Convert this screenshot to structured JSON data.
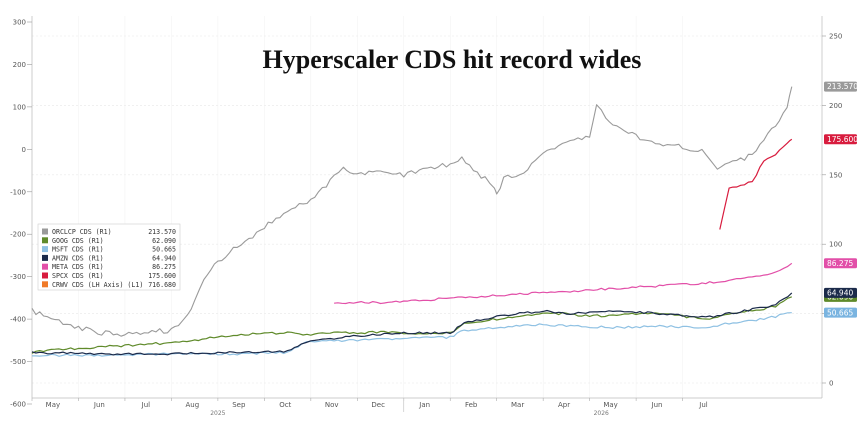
{
  "chart_data": {
    "type": "line",
    "title": "Hyperscaler CDS hit record wides",
    "grid": true,
    "legend_position": "left",
    "x_months": [
      "May",
      "Jun",
      "Jul",
      "Aug",
      "Sep",
      "Oct",
      "Nov",
      "Dec",
      "Jan",
      "Feb",
      "Mar",
      "Apr",
      "May",
      "Jun",
      "Jul"
    ],
    "x_years": [
      "2025",
      "2026"
    ],
    "y_left": {
      "ticks": [
        "300",
        "200",
        "100",
        "0",
        "-100",
        "-200",
        "-300",
        "-400",
        "-500",
        "-600"
      ],
      "ylim": [
        -600,
        300
      ]
    },
    "y_right": {
      "ticks": [
        "250",
        "200",
        "150",
        "100",
        "50",
        "0"
      ],
      "ylim": [
        0,
        250
      ]
    },
    "series": [
      {
        "name": "ORCLCP CDS (R1)",
        "last": "213.570",
        "color": "#9a9a9a",
        "tag_fill": "#9a9a9a",
        "tag_text": "#ffffff",
        "points": [
          [
            0,
            52
          ],
          [
            1,
            45
          ],
          [
            2,
            40
          ],
          [
            3,
            36
          ],
          [
            4,
            35
          ],
          [
            5,
            37
          ],
          [
            6,
            38
          ],
          [
            6.3,
            42
          ],
          [
            6.7,
            48
          ],
          [
            7,
            60
          ],
          [
            7.4,
            75
          ],
          [
            8,
            88
          ],
          [
            9,
            100
          ],
          [
            10,
            112
          ],
          [
            11,
            125
          ],
          [
            12,
            132
          ],
          [
            13,
            148
          ],
          [
            13.4,
            155
          ],
          [
            14,
            150
          ],
          [
            15,
            153
          ],
          [
            16,
            150
          ],
          [
            17,
            154
          ],
          [
            18,
            158
          ],
          [
            18.5,
            162
          ],
          [
            19,
            152
          ],
          [
            19.5,
            148
          ],
          [
            19.9,
            140
          ],
          [
            20,
            136
          ],
          [
            20.3,
            148
          ],
          [
            21,
            150
          ],
          [
            21.5,
            158
          ],
          [
            22,
            164
          ],
          [
            22.5,
            170
          ],
          [
            23,
            172
          ],
          [
            24,
            178
          ],
          [
            24.3,
            200
          ],
          [
            24.7,
            192
          ],
          [
            25,
            185
          ],
          [
            26,
            178
          ],
          [
            27,
            172
          ],
          [
            28,
            170
          ],
          [
            29,
            166
          ],
          [
            29.5,
            154
          ],
          [
            30,
            158
          ],
          [
            31,
            164
          ],
          [
            31.5,
            175
          ],
          [
            32,
            185
          ],
          [
            32.5,
            200
          ],
          [
            32.7,
            213.57
          ]
        ]
      },
      {
        "name": "GOOG CDS (R1)",
        "last": "62.090",
        "color": "#5f8a2a",
        "tag_fill": "#5f8a2a",
        "tag_text": "#ffffff",
        "points": [
          [
            0,
            22
          ],
          [
            1,
            24
          ],
          [
            2,
            25
          ],
          [
            3,
            26
          ],
          [
            4,
            27
          ],
          [
            5,
            28
          ],
          [
            6,
            29
          ],
          [
            7,
            31
          ],
          [
            8,
            33
          ],
          [
            9,
            35
          ],
          [
            10,
            36
          ],
          [
            11,
            36
          ],
          [
            12,
            35
          ],
          [
            13,
            36
          ],
          [
            14,
            36
          ],
          [
            15,
            37
          ],
          [
            16,
            36
          ],
          [
            17,
            35
          ],
          [
            18,
            36
          ],
          [
            18.6,
            43
          ],
          [
            19,
            44
          ],
          [
            20,
            46
          ],
          [
            21,
            48
          ],
          [
            22,
            50
          ],
          [
            23,
            50
          ],
          [
            24,
            48
          ],
          [
            25,
            49
          ],
          [
            26,
            50
          ],
          [
            27,
            50
          ],
          [
            28,
            48
          ],
          [
            29,
            46
          ],
          [
            30,
            50
          ],
          [
            31,
            52
          ],
          [
            32,
            55
          ],
          [
            32.7,
            62.09
          ]
        ]
      },
      {
        "name": "MSFT CDS (R1)",
        "last": "50.665",
        "color": "#8fc1e3",
        "tag_fill": "#7ab4e0",
        "tag_text": "#ffffff",
        "points": [
          [
            0,
            20
          ],
          [
            3,
            20
          ],
          [
            6,
            21
          ],
          [
            9,
            21
          ],
          [
            11,
            22
          ],
          [
            11.6,
            28
          ],
          [
            12,
            30
          ],
          [
            14,
            31
          ],
          [
            16,
            32
          ],
          [
            18,
            33
          ],
          [
            18.6,
            38
          ],
          [
            20,
            40
          ],
          [
            22,
            42
          ],
          [
            23,
            41
          ],
          [
            25,
            40
          ],
          [
            27,
            41
          ],
          [
            29,
            40
          ],
          [
            30,
            43
          ],
          [
            31,
            45
          ],
          [
            32,
            48
          ],
          [
            32.7,
            50.665
          ]
        ]
      },
      {
        "name": "AMZN CDS (R1)",
        "last": "64.940",
        "color": "#1b2a4a",
        "tag_fill": "#1b2a4a",
        "tag_text": "#ffffff",
        "points": [
          [
            0,
            22
          ],
          [
            3,
            21
          ],
          [
            6,
            21
          ],
          [
            9,
            22
          ],
          [
            11,
            23
          ],
          [
            11.6,
            28
          ],
          [
            12,
            30
          ],
          [
            14,
            34
          ],
          [
            16,
            36
          ],
          [
            18,
            36
          ],
          [
            18.6,
            43
          ],
          [
            20,
            48
          ],
          [
            22,
            52
          ],
          [
            23,
            50
          ],
          [
            25,
            52
          ],
          [
            27,
            50
          ],
          [
            29,
            47
          ],
          [
            30,
            50
          ],
          [
            31,
            53
          ],
          [
            32,
            56
          ],
          [
            32.7,
            64.94
          ]
        ]
      },
      {
        "name": "META CDS (R1)",
        "last": "86.275",
        "color": "#e24fa8",
        "tag_fill": "#e24fa8",
        "tag_text": "#ffffff",
        "points": [
          [
            13,
            58
          ],
          [
            15,
            58
          ],
          [
            17,
            60
          ],
          [
            19,
            62
          ],
          [
            21,
            64
          ],
          [
            23,
            66
          ],
          [
            25,
            68
          ],
          [
            27,
            70
          ],
          [
            29,
            72
          ],
          [
            30,
            74
          ],
          [
            31,
            76
          ],
          [
            32,
            80
          ],
          [
            32.7,
            86.275
          ]
        ]
      },
      {
        "name": "SPCX CDS (R1)",
        "last": "175.600",
        "color": "#d81c3e",
        "tag_fill": "#d81c3e",
        "tag_text": "#ffffff",
        "points": [
          [
            29.6,
            110
          ],
          [
            30,
            140
          ],
          [
            30.5,
            142
          ],
          [
            31,
            145
          ],
          [
            31.5,
            160
          ],
          [
            32,
            165
          ],
          [
            32.5,
            172
          ],
          [
            32.7,
            175.6
          ]
        ]
      },
      {
        "name": "CRWV CDS (LH Axis) (L1)",
        "last": "716.680",
        "color": "#f07a28",
        "tag_fill": "#f07a28",
        "tag_text": "#ffffff",
        "points": []
      }
    ]
  }
}
